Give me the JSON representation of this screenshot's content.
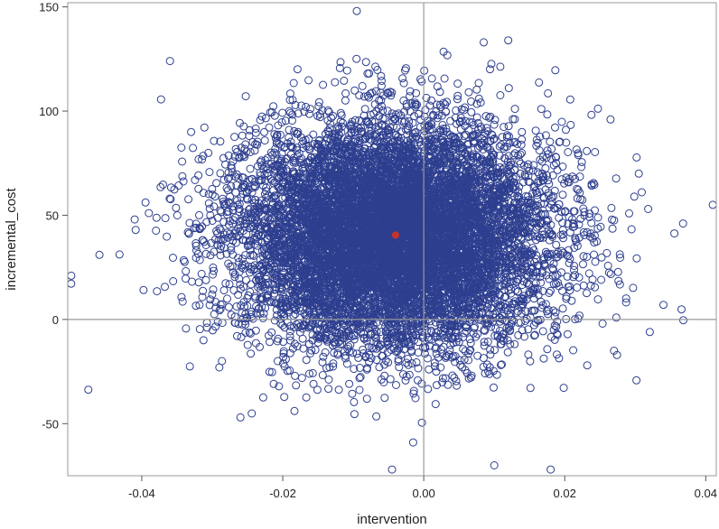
{
  "chart_data": {
    "type": "scatter",
    "title": "",
    "xlabel": "intervention",
    "ylabel": "incremental_cost",
    "xlim": [
      -0.0505,
      0.0415
    ],
    "ylim": [
      -75,
      152
    ],
    "x_ticks": [
      -0.04,
      -0.02,
      0.0,
      0.02,
      0.04
    ],
    "x_tick_labels": [
      "-0.04",
      "-0.02",
      "0.00",
      "0.02",
      "0.04"
    ],
    "y_ticks": [
      -50,
      0,
      50,
      100,
      150
    ],
    "y_tick_labels": [
      "-50",
      "0",
      "50",
      "100",
      "150"
    ],
    "reference_lines": {
      "x": 0,
      "y": 0
    },
    "grid": false,
    "legend": "none",
    "point_count_estimate": 10000,
    "distribution": {
      "x_mean": -0.0045,
      "x_sd": 0.011,
      "y_mean": 40.5,
      "y_sd": 26.5
    },
    "mean_point": {
      "x": -0.004,
      "y": 40.5
    },
    "outlier_points": [
      {
        "x": -0.05,
        "y": 21
      },
      {
        "x": -0.046,
        "y": 31
      },
      {
        "x": -0.041,
        "y": 48
      },
      {
        "x": -0.039,
        "y": 51
      },
      {
        "x": -0.036,
        "y": 124
      },
      {
        "x": -0.0095,
        "y": 148
      },
      {
        "x": 0.041,
        "y": 55
      },
      {
        "x": 0.034,
        "y": 7
      },
      {
        "x": 0.0265,
        "y": 96
      },
      {
        "x": 0.0305,
        "y": 70
      },
      {
        "x": 0.0085,
        "y": 133
      },
      {
        "x": -0.0045,
        "y": -72
      },
      {
        "x": 0.018,
        "y": -72
      },
      {
        "x": -0.0015,
        "y": -59
      },
      {
        "x": 0.01,
        "y": -70
      },
      {
        "x": -0.026,
        "y": -47
      },
      {
        "x": -0.029,
        "y": -23
      },
      {
        "x": 0.027,
        "y": -15
      }
    ],
    "colors": {
      "points": "#2e3f8f",
      "mean_point": "#c8312c",
      "reference_lines": "#9a9a9a",
      "frame": "#9a9a9a"
    }
  }
}
